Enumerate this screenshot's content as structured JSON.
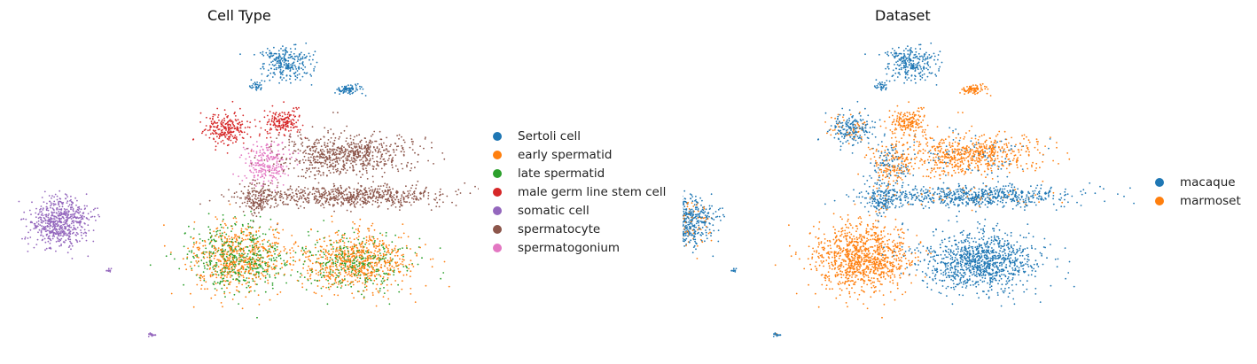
{
  "chart_data": [
    {
      "type": "scatter",
      "title": "Cell Type",
      "xlabel": "",
      "ylabel": "",
      "axes_visible": false,
      "legend_position": "right",
      "legend": [
        {
          "label": "Sertoli cell",
          "color": "#1f77b4"
        },
        {
          "label": "early spermatid",
          "color": "#ff7f0e"
        },
        {
          "label": "late spermatid",
          "color": "#2ca02c"
        },
        {
          "label": "male germ line stem cell",
          "color": "#d62728"
        },
        {
          "label": "somatic cell",
          "color": "#9467bd"
        },
        {
          "label": "spermatocyte",
          "color": "#8c564b"
        },
        {
          "label": "spermatogonium",
          "color": "#e377c2"
        }
      ]
    },
    {
      "type": "scatter",
      "title": "Dataset",
      "xlabel": "",
      "ylabel": "",
      "axes_visible": false,
      "legend_position": "right",
      "legend": [
        {
          "label": "macaque",
          "color": "#1f77b4"
        },
        {
          "label": "marmoset",
          "color": "#ff7f0e"
        }
      ]
    }
  ]
}
